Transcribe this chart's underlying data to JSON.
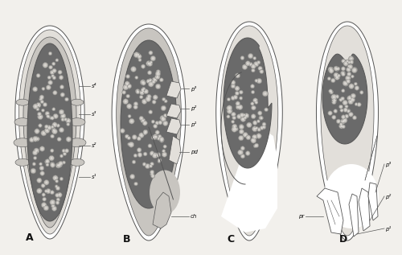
{
  "bg_color": "#f2f0ec",
  "dark_fill": "#6a6a6a",
  "medium_fill": "#9a9a9a",
  "light_fill": "#c8c5c0",
  "very_light_fill": "#e2dfda",
  "white": "#ffffff",
  "text_color": "#111111",
  "line_color": "#555555",
  "label_A": "A",
  "label_B": "B",
  "label_C": "C",
  "label_D": "D",
  "figsize": [
    5.0,
    3.17
  ],
  "dpi": 100
}
